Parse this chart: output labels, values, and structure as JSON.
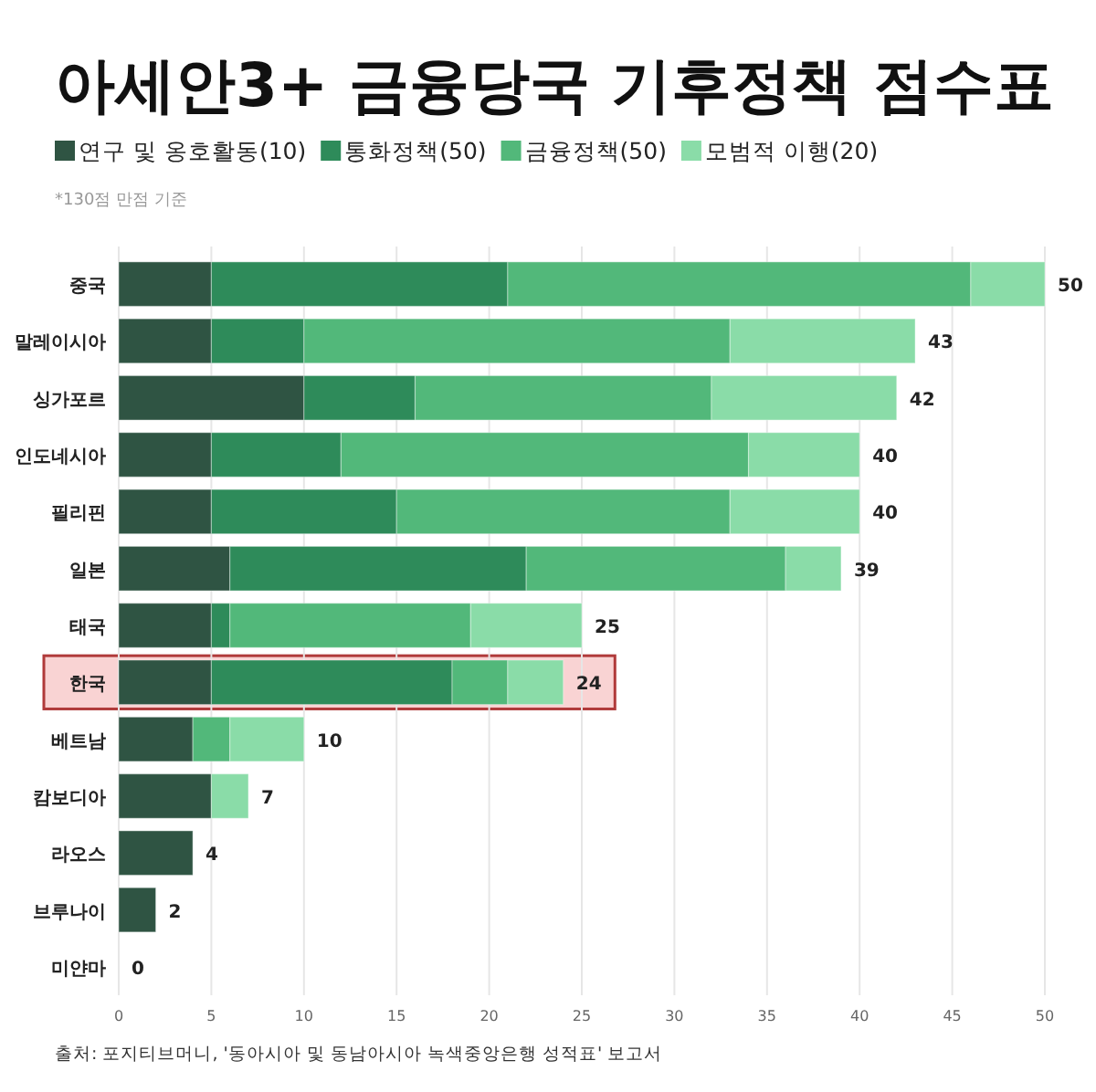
{
  "chart_data": {
    "type": "bar",
    "orientation": "horizontal",
    "stacked": true,
    "title": "아세안3+ 금융당국 기후정책 점수표",
    "subtitle": "*130점 만점 기준",
    "categories": [
      "중국",
      "말레이시아",
      "싱가포르",
      "인도네시아",
      "필리핀",
      "일본",
      "태국",
      "한국",
      "베트남",
      "캄보디아",
      "라오스",
      "브루나이",
      "미얀마"
    ],
    "series": [
      {
        "name": "연구 및 옹호활동(10)",
        "color": "#2f5443",
        "values": [
          5,
          5,
          10,
          5,
          5,
          6,
          5,
          5,
          4,
          5,
          4,
          2,
          0
        ]
      },
      {
        "name": "통화정책(50)",
        "color": "#2e8b5a",
        "values": [
          16,
          5,
          6,
          7,
          10,
          16,
          1,
          13,
          0,
          0,
          0,
          0,
          0
        ]
      },
      {
        "name": "금융정책(50)",
        "color": "#52b87a",
        "values": [
          25,
          23,
          16,
          22,
          18,
          14,
          13,
          3,
          2,
          0,
          0,
          0,
          0
        ]
      },
      {
        "name": "모범적 이행(20)",
        "color": "#8adca8",
        "values": [
          4,
          10,
          10,
          6,
          7,
          3,
          6,
          3,
          4,
          2,
          0,
          0,
          0
        ]
      }
    ],
    "totals": [
      "50",
      "43",
      "42",
      "40",
      "40",
      "39",
      "25",
      "24",
      "10",
      "7",
      "4",
      "2",
      "0"
    ],
    "xlim": [
      0,
      50
    ],
    "xticks": [
      0,
      5,
      10,
      15,
      20,
      25,
      30,
      35,
      40,
      45,
      50
    ],
    "grid": "x",
    "legend": "top left",
    "bands": [
      {
        "axis": "y",
        "from": "한국",
        "to": "한국",
        "color": "#f9d3d3"
      }
    ],
    "annotations": [
      "출처: 포지티브머니, '동아시아 및 동남아시아 녹색중앙은행 성적표' 보고서"
    ]
  }
}
